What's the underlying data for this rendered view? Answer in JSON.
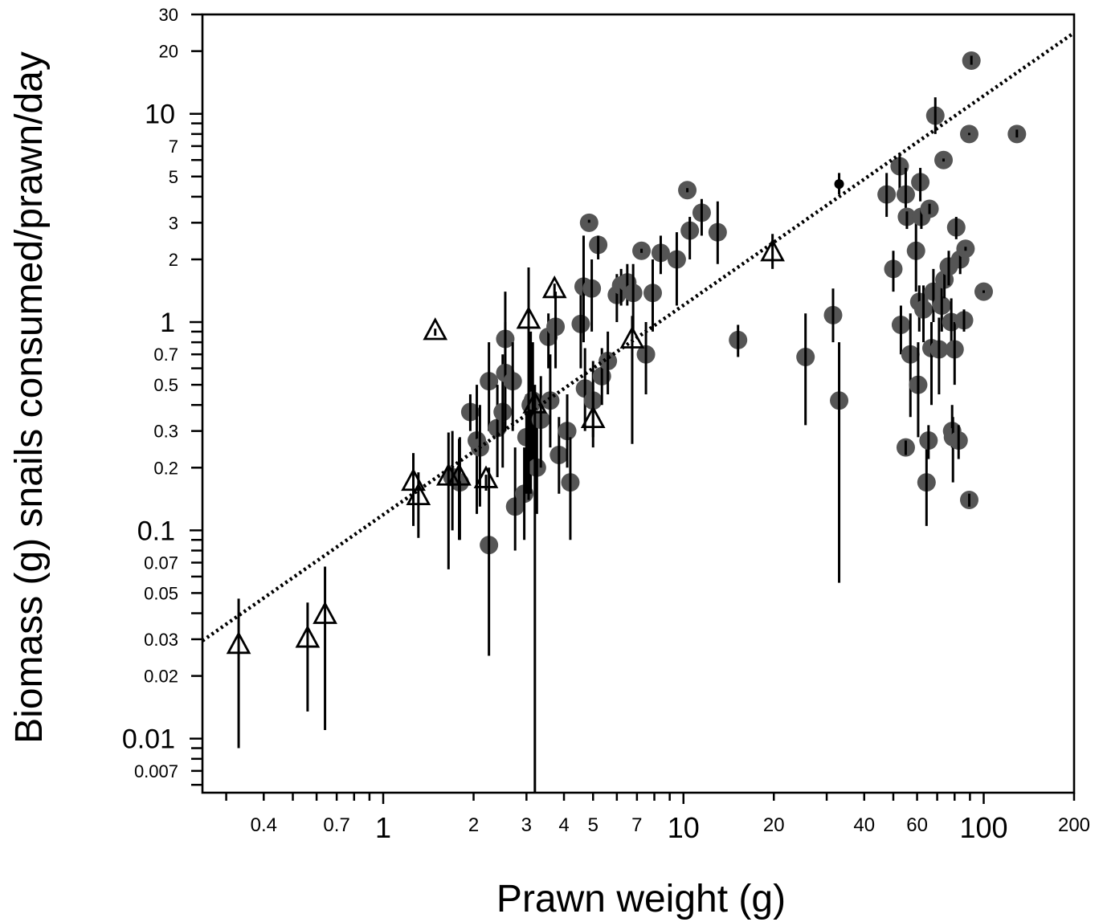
{
  "chart_data": {
    "type": "scatter",
    "title": "",
    "xlabel": "Prawn weight (g)",
    "ylabel": "Biomass (g) snails consumed/prawn/day",
    "xscale": "log",
    "yscale": "log",
    "xlim": [
      0.25,
      200
    ],
    "ylim": [
      0.0055,
      30
    ],
    "grid": false,
    "legend": "none",
    "x_ticks": [
      {
        "value": 0.4,
        "label": "0.4",
        "major": false
      },
      {
        "value": 0.7,
        "label": "0.7",
        "major": false
      },
      {
        "value": 1,
        "label": "1",
        "major": true
      },
      {
        "value": 2,
        "label": "2",
        "major": false
      },
      {
        "value": 3,
        "label": "3",
        "major": false
      },
      {
        "value": 4,
        "label": "4",
        "major": false
      },
      {
        "value": 5,
        "label": "5",
        "major": false
      },
      {
        "value": 7,
        "label": "7",
        "major": false
      },
      {
        "value": 10,
        "label": "10",
        "major": true
      },
      {
        "value": 20,
        "label": "20",
        "major": false
      },
      {
        "value": 40,
        "label": "40",
        "major": false
      },
      {
        "value": 60,
        "label": "60",
        "major": false
      },
      {
        "value": 100,
        "label": "100",
        "major": true
      },
      {
        "value": 200,
        "label": "200",
        "major": false
      }
    ],
    "x_minor_ticks": [
      0.3,
      0.5,
      0.6,
      0.8,
      0.9,
      6,
      8,
      9,
      30,
      50,
      70,
      80,
      90
    ],
    "y_ticks": [
      {
        "value": 0.007,
        "label": "0.007",
        "major": false
      },
      {
        "value": 0.01,
        "label": "0.01",
        "major": true
      },
      {
        "value": 0.02,
        "label": "0.02",
        "major": false
      },
      {
        "value": 0.03,
        "label": "0.03",
        "major": false
      },
      {
        "value": 0.05,
        "label": "0.05",
        "major": false
      },
      {
        "value": 0.07,
        "label": "0.07",
        "major": false
      },
      {
        "value": 0.1,
        "label": "0.1",
        "major": true
      },
      {
        "value": 0.2,
        "label": "0.2",
        "major": false
      },
      {
        "value": 0.3,
        "label": "0.3",
        "major": false
      },
      {
        "value": 0.5,
        "label": "0.5",
        "major": false
      },
      {
        "value": 0.7,
        "label": "0.7",
        "major": false
      },
      {
        "value": 1,
        "label": "1",
        "major": true
      },
      {
        "value": 2,
        "label": "2",
        "major": false
      },
      {
        "value": 3,
        "label": "3",
        "major": false
      },
      {
        "value": 5,
        "label": "5",
        "major": false
      },
      {
        "value": 7,
        "label": "7",
        "major": false
      },
      {
        "value": 10,
        "label": "10",
        "major": true
      },
      {
        "value": 20,
        "label": "20",
        "major": false
      },
      {
        "value": 30,
        "label": "30",
        "major": false
      }
    ],
    "y_minor_ticks": [
      0.006,
      0.008,
      0.009,
      0.04,
      0.06,
      0.08,
      0.09,
      0.4,
      0.6,
      0.8,
      0.9,
      4,
      6,
      8,
      9
    ],
    "fit_line": {
      "style": "dotted",
      "color": "#000000",
      "x": [
        0.25,
        200
      ],
      "y": [
        0.0295,
        24.5
      ]
    },
    "series": [
      {
        "marker": "circle",
        "color": "#555555",
        "points": [
          [
            1.95,
            0.37,
            0.3,
            0.45
          ],
          [
            2.05,
            0.27,
            0.12,
            0.5
          ],
          [
            2.1,
            0.25,
            0.13,
            0.4
          ],
          [
            1.8,
            0.17,
            0.09,
            0.28
          ],
          [
            1.7,
            0.18,
            0.1,
            0.3
          ],
          [
            2.25,
            0.085,
            0.025,
            0.2
          ],
          [
            2.25,
            0.52,
            0.3,
            0.8
          ],
          [
            2.4,
            0.31,
            0.18,
            0.5
          ],
          [
            2.5,
            0.37,
            0.2,
            0.7
          ],
          [
            2.55,
            0.57,
            0.3,
            1.4
          ],
          [
            2.55,
            0.83,
            0.6,
            1.0
          ],
          [
            2.7,
            0.52,
            0.3,
            0.8
          ],
          [
            2.75,
            0.13,
            0.08,
            0.25
          ],
          [
            2.95,
            0.15,
            0.09,
            0.25
          ],
          [
            3.0,
            0.28,
            0.15,
            0.45
          ],
          [
            3.1,
            0.4,
            0.15,
            0.9
          ],
          [
            3.15,
            0.42,
            0.2,
            0.8
          ],
          [
            3.25,
            0.2,
            0.12,
            0.35
          ],
          [
            3.35,
            0.34,
            0.2,
            0.55
          ],
          [
            3.6,
            0.42,
            0.25,
            0.7
          ],
          [
            3.55,
            0.85,
            0.6,
            1.1
          ],
          [
            3.75,
            0.95,
            0.6,
            1.4
          ],
          [
            3.85,
            0.23,
            0.15,
            0.35
          ],
          [
            4.1,
            0.3,
            0.2,
            0.45
          ],
          [
            4.2,
            0.17,
            0.09,
            0.28
          ],
          [
            4.55,
            0.98,
            0.6,
            1.5
          ],
          [
            4.7,
            0.48,
            0.3,
            0.75
          ],
          [
            4.65,
            1.48,
            0.8,
            2.6
          ],
          [
            4.85,
            3.0,
            3.0,
            3.1
          ],
          [
            4.95,
            1.45,
            0.9,
            2.0
          ],
          [
            5.0,
            0.42,
            0.28,
            0.65
          ],
          [
            5.2,
            2.35,
            2.0,
            2.6
          ],
          [
            5.35,
            0.55,
            0.4,
            0.75
          ],
          [
            5.6,
            0.65,
            0.45,
            0.9
          ],
          [
            6.0,
            1.35,
            1.0,
            1.7
          ],
          [
            6.2,
            1.5,
            1.2,
            1.8
          ],
          [
            6.5,
            1.55,
            1.2,
            1.9
          ],
          [
            6.8,
            1.38,
            0.9,
            1.9
          ],
          [
            7.25,
            2.2,
            2.15,
            2.25
          ],
          [
            7.5,
            0.7,
            0.45,
            1.0
          ],
          [
            7.9,
            1.38,
            0.9,
            2.0
          ],
          [
            8.4,
            2.15,
            1.7,
            2.6
          ],
          [
            9.5,
            2.0,
            1.2,
            2.7
          ],
          [
            10.3,
            4.3,
            4.2,
            4.4
          ],
          [
            10.5,
            2.75,
            2.0,
            3.2
          ],
          [
            11.5,
            3.35,
            2.6,
            3.9
          ],
          [
            13.0,
            2.7,
            1.9,
            3.8
          ],
          [
            15.2,
            0.82,
            0.68,
            0.97
          ],
          [
            25.5,
            0.68,
            0.32,
            1.1
          ],
          [
            31.5,
            1.08,
            0.8,
            1.45
          ],
          [
            33.0,
            0.42,
            0.056,
            0.8
          ],
          [
            47.5,
            4.1,
            3.2,
            5.2
          ],
          [
            50.0,
            1.8,
            1.4,
            2.2
          ],
          [
            52.5,
            5.6,
            4.2,
            6.5
          ],
          [
            53.0,
            0.97,
            0.7,
            1.2
          ],
          [
            55.0,
            4.1,
            3.0,
            5.5
          ],
          [
            55.5,
            3.2,
            2.8,
            3.4
          ],
          [
            55.0,
            0.25,
            0.23,
            0.27
          ],
          [
            57.0,
            0.7,
            0.35,
            1.1
          ],
          [
            59.5,
            2.2,
            1.4,
            3.0
          ],
          [
            60.5,
            0.5,
            0.28,
            0.8
          ],
          [
            61.5,
            4.7,
            3.8,
            5.5
          ],
          [
            61.0,
            1.25,
            0.9,
            1.5
          ],
          [
            62.0,
            3.2,
            2.8,
            3.5
          ],
          [
            63.0,
            1.15,
            0.8,
            1.5
          ],
          [
            64.5,
            0.17,
            0.105,
            0.26
          ],
          [
            65.5,
            0.27,
            0.22,
            0.32
          ],
          [
            66.0,
            3.5,
            3.3,
            3.7
          ],
          [
            67.0,
            0.75,
            0.4,
            1.0
          ],
          [
            68.0,
            1.4,
            1.0,
            1.8
          ],
          [
            69.0,
            9.8,
            8.0,
            12.0
          ],
          [
            71.0,
            0.74,
            0.45,
            1.05
          ],
          [
            72.5,
            1.2,
            0.9,
            1.5
          ],
          [
            73.5,
            6.0,
            5.9,
            6.1
          ],
          [
            74.0,
            1.6,
            1.3,
            1.9
          ],
          [
            76.5,
            1.85,
            1.5,
            2.2
          ],
          [
            78.0,
            1.0,
            0.75,
            1.3
          ],
          [
            78.5,
            0.3,
            0.25,
            0.4
          ],
          [
            79.0,
            0.28,
            0.17,
            0.35
          ],
          [
            80.0,
            0.74,
            0.5,
            1.0
          ],
          [
            82.5,
            0.27,
            0.22,
            0.32
          ],
          [
            81.0,
            2.85,
            2.5,
            3.2
          ],
          [
            83.5,
            2.0,
            1.7,
            2.3
          ],
          [
            86.0,
            1.02,
            0.9,
            1.15
          ],
          [
            87.0,
            2.25,
            2.2,
            2.3
          ],
          [
            89.5,
            8.0,
            7.9,
            8.1
          ],
          [
            89.5,
            0.14,
            0.13,
            0.15
          ],
          [
            91.0,
            18.0,
            17.2,
            19.0
          ],
          [
            100.0,
            1.4,
            1.38,
            1.42
          ],
          [
            129.0,
            8.0,
            7.7,
            8.4
          ]
        ]
      },
      {
        "marker": "triangle",
        "color": "#000000",
        "points": [
          [
            0.33,
            0.028,
            0.009,
            0.047
          ],
          [
            0.56,
            0.03,
            0.0135,
            0.045
          ],
          [
            0.64,
            0.039,
            0.011,
            0.067
          ],
          [
            1.26,
            0.17,
            0.105,
            0.235
          ],
          [
            1.31,
            0.145,
            0.092,
            0.19
          ],
          [
            1.49,
            0.9,
            0.86,
            0.93
          ],
          [
            1.65,
            0.18,
            0.065,
            0.295
          ],
          [
            1.79,
            0.18,
            0.09,
            0.275
          ],
          [
            2.2,
            0.175,
            0.155,
            0.185
          ],
          [
            3.05,
            1.02,
            0.14,
            1.83
          ],
          [
            3.2,
            0.4,
            0.0055,
            0.5
          ],
          [
            3.72,
            1.43,
            1.3,
            1.53
          ],
          [
            5.0,
            0.34,
            0.25,
            0.46
          ],
          [
            6.75,
            0.82,
            0.26,
            1.07
          ],
          [
            19.8,
            2.15,
            1.8,
            2.65
          ]
        ]
      },
      {
        "marker": "dot",
        "color": "#000000",
        "points": [
          [
            33.0,
            4.6,
            4.1,
            5.2
          ]
        ]
      }
    ]
  }
}
